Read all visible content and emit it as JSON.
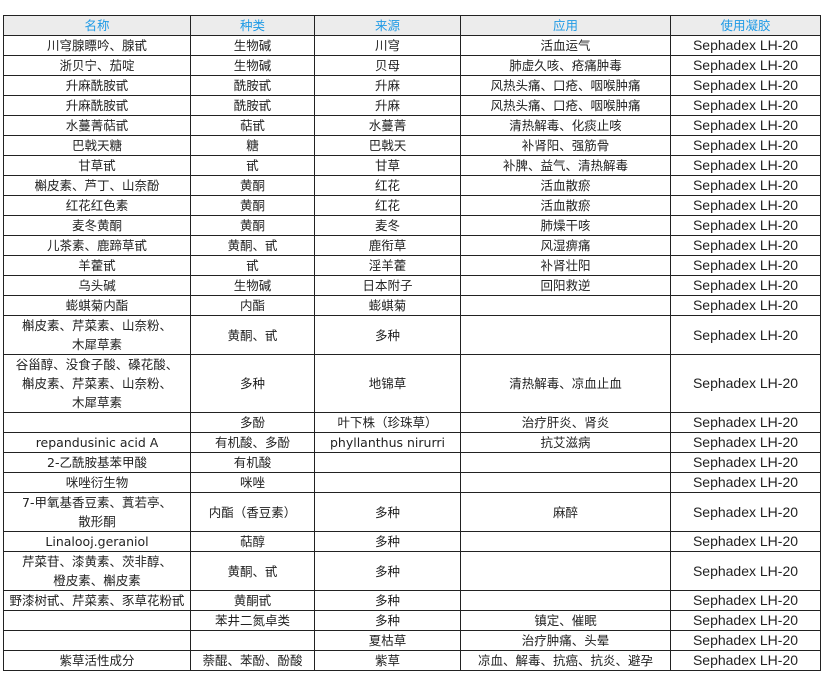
{
  "colors": {
    "header_bg": "#ececec",
    "header_text": "#1e9ae6",
    "border": "#222222"
  },
  "headers": [
    "名称",
    "种类",
    "来源",
    "应用",
    "使用凝胶"
  ],
  "rows": [
    {
      "name": "川穹腺瞟吟、腺甙",
      "type": "生物碱",
      "source": "川穹",
      "use": "活血运气",
      "gel": "Sephadex LH-20"
    },
    {
      "name": "浙贝宁、茄啶",
      "type": "生物碱",
      "source": "贝母",
      "use": "肺虚久咳、疮痛肿毒",
      "gel": "Sephadex LH-20"
    },
    {
      "name": "升麻酰胺甙",
      "type": "酰胺甙",
      "source": "升麻",
      "use": "风热头痛、口疮、咽喉肿痛",
      "gel": "Sephadex LH-20"
    },
    {
      "name": "升麻酰胺甙",
      "type": "酰胺甙",
      "source": "升麻",
      "use": "风热头痛、口疮、咽喉肿痛",
      "gel": "Sephadex LH-20"
    },
    {
      "name": "水蔓菁萜甙",
      "type": "萜甙",
      "source": "水蔓菁",
      "use": "清热解毒、化痰止咳",
      "gel": "Sephadex LH-20"
    },
    {
      "name": "巴戟天糖",
      "type": "糖",
      "source": "巴戟天",
      "use": "补肾阳、强筋骨",
      "gel": "Sephadex LH-20"
    },
    {
      "name": "甘草甙",
      "type": "甙",
      "source": "甘草",
      "use": "补脾、益气、清热解毒",
      "gel": "Sephadex LH-20"
    },
    {
      "name": "槲皮素、芦丁、山奈酚",
      "type": "黄酮",
      "source": "红花",
      "use": "活血散瘀",
      "gel": "Sephadex LH-20"
    },
    {
      "name": "红花红色素",
      "type": "黄酮",
      "source": "红花",
      "use": "活血散瘀",
      "gel": "Sephadex LH-20"
    },
    {
      "name": "麦冬黄酮",
      "type": "黄酮",
      "source": "麦冬",
      "use": "肺燥干咳",
      "gel": "Sephadex LH-20"
    },
    {
      "name": "儿茶素、鹿蹄草甙",
      "type": "黄酮、甙",
      "source": "鹿衔草",
      "use": "风湿痹痛",
      "gel": "Sephadex LH-20"
    },
    {
      "name": "羊藿甙",
      "type": "甙",
      "source": "淫羊藿",
      "use": "补肾壮阳",
      "gel": "Sephadex LH-20"
    },
    {
      "name": "乌头碱",
      "type": "生物碱",
      "source": "日本附子",
      "use": "回阳救逆",
      "gel": "Sephadex LH-20"
    },
    {
      "name": "蟛蜞菊内酯",
      "type": "内酯",
      "source": "蟛蜞菊",
      "use": "",
      "gel": "Sephadex LH-20"
    },
    {
      "name": "槲皮素、芹菜素、山奈粉、\n木犀草素",
      "type": "黄酮、甙",
      "source": "多种",
      "use": "",
      "gel": "Sephadex LH-20"
    },
    {
      "name": "谷甾醇、没食子酸、磉花酸、\n槲皮素、芹菜素、山奈粉、\n木犀草素",
      "type": "多种",
      "source": "地锦草",
      "use": "清热解毒、凉血止血",
      "gel": "Sephadex LH-20"
    },
    {
      "name": "",
      "type": "多酚",
      "source": "叶下株（珍珠草）",
      "use": "治疗肝炎、肾炎",
      "gel": "Sephadex LH-20"
    },
    {
      "name": "repandusinic acid A",
      "type": "有机酸、多酚",
      "source": "phyllanthus nirurri",
      "use": "抗艾滋病",
      "gel": "Sephadex LH-20"
    },
    {
      "name": "2-乙酰胺基苯甲酸",
      "type": "有机酸",
      "source": "",
      "use": "",
      "gel": "Sephadex LH-20"
    },
    {
      "name": "咪唑衍生物",
      "type": "咪唑",
      "source": "",
      "use": "",
      "gel": "Sephadex LH-20"
    },
    {
      "name": "7-甲氧基香豆素、蒖若亭、\n散形酮",
      "type": "内酯（香豆素）",
      "source": "多种",
      "use": "麻醉",
      "gel": "Sephadex LH-20"
    },
    {
      "name": "Linalooj.geraniol",
      "type": "萜醇",
      "source": "多种",
      "use": "",
      "gel": "Sephadex LH-20"
    },
    {
      "name": "芹菜苷、漆黄素、茨非醇、\n橙皮素、槲皮素",
      "type": "黄酮、甙",
      "source": "多种",
      "use": "",
      "gel": "Sephadex LH-20"
    },
    {
      "name": "野漆树甙、芹菜素、豕草花粉甙",
      "type": "黄酮甙",
      "source": "多种",
      "use": "",
      "gel": "Sephadex  LH-20"
    },
    {
      "name": "",
      "type": "苯井二氮卓类",
      "source": "多种",
      "use": "镇定、催眠",
      "gel": "Sephadex  LH-20"
    },
    {
      "name": "",
      "type": "",
      "source": "夏枯草",
      "use": "治疗肿痛、头晕",
      "gel": "Sephadex  LH-20"
    },
    {
      "name": "紫草活性成分",
      "type": "萘醌、苯酚、酚酸",
      "source": "紫草",
      "use": "凉血、解毒、抗癌、抗炎、避孕",
      "gel": "Sephadex  LH-20"
    }
  ]
}
